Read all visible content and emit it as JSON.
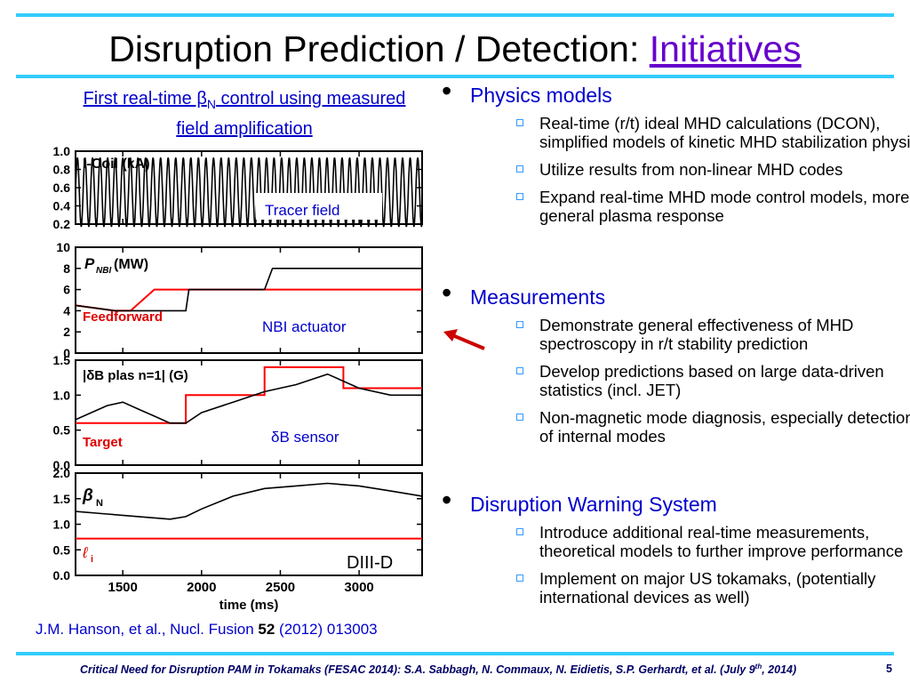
{
  "slide": {
    "title_main": "Disruption Prediction / Detection: ",
    "title_highlight": "Initiatives",
    "subtitle_a": "First real-time β",
    "subtitle_sub": "N",
    "subtitle_b": " control using measured field amplification",
    "reference_a": "J.M. Hanson, et al., Nucl. Fusion ",
    "reference_vol": "52",
    "reference_b": " (2012) 013003",
    "footer_a": "Critical Need for Disruption PAM in Tokamaks (FESAC 2014): S.A. Sabbagh, N. Commaux, N. Eidietis, S.P. Gerhardt, et al. (July 9",
    "footer_sup": "th",
    "footer_b": ", 2014)",
    "page_number": "5"
  },
  "bullets": [
    {
      "label": "Physics models",
      "items": [
        "Real-time (r/t) ideal MHD calculations (DCON), simplified models of kinetic MHD stabilization physics",
        "Utilize results from non-linear MHD codes",
        "Expand real-time MHD mode control models, more general plasma response"
      ]
    },
    {
      "label": "Measurements",
      "items": [
        "Demonstrate general effectiveness of MHD spectroscopy in r/t stability prediction",
        "Develop predictions based on large data-driven statistics (incl. JET)",
        "Non-magnetic mode diagnosis, especially detection of internal modes"
      ]
    },
    {
      "label": "Disruption Warning System",
      "items": [
        "Introduce additional real-time measurements, theoretical models to further improve performance",
        "Implement on major US tokamaks, (potentially international devices as well)"
      ]
    }
  ],
  "chart_data": {
    "type": "line",
    "x_range": [
      1200,
      3400
    ],
    "x_ticks": [
      "1500",
      "2000",
      "2500",
      "3000"
    ],
    "xlabel": "time (ms)",
    "annotation_machine": "DIII-D",
    "panels": [
      {
        "ylabel": "I-Coil (kA)",
        "annotation": "Tracer field",
        "y_ticks": [
          "1.0",
          "0.8",
          "0.6",
          "0.4",
          "0.2"
        ],
        "ylim": [
          0.2,
          1.0
        ],
        "series": [
          {
            "color": "#000000",
            "kind": "sine",
            "center": 0.55,
            "amplitude": 0.38,
            "period_ms": 48
          }
        ]
      },
      {
        "ylabel_a": "P",
        "ylabel_sub": "NBI",
        "ylabel_b": " (MW)",
        "label_red": "Feedforward",
        "annotation": "NBI actuator",
        "y_ticks": [
          "10",
          "8",
          "6",
          "4",
          "2",
          "0"
        ],
        "ylim": [
          0,
          10
        ],
        "series": [
          {
            "color": "#ff0000",
            "x": [
              1200,
              1450,
              1550,
              1700,
              3400
            ],
            "y": [
              4.5,
              4,
              4,
              6,
              6
            ]
          },
          {
            "color": "#000000",
            "x": [
              1200,
              1450,
              1900,
              1920,
              2100,
              2200,
              2400,
              2450,
              3400
            ],
            "y": [
              4.5,
              4,
              4,
              6,
              6,
              6,
              6,
              8,
              8
            ]
          }
        ]
      },
      {
        "ylabel": "|δB plas n=1| (G)",
        "label_red": "Target",
        "annotation": "δB sensor",
        "y_ticks": [
          "1.5",
          "1.0",
          "0.5",
          "0.0"
        ],
        "ylim": [
          0,
          1.5
        ],
        "series": [
          {
            "color": "#ff0000",
            "x": [
              1200,
              1900,
              1900,
              2400,
              2400,
              2900,
              2900,
              3400
            ],
            "y": [
              0.6,
              0.6,
              1.0,
              1.0,
              1.4,
              1.4,
              1.1,
              1.1
            ]
          },
          {
            "color": "#000000",
            "x": [
              1200,
              1300,
              1400,
              1500,
              1600,
              1700,
              1800,
              1900,
              2000,
              2200,
              2400,
              2600,
              2800,
              3000,
              3200,
              3400
            ],
            "y": [
              0.65,
              0.75,
              0.85,
              0.9,
              0.8,
              0.7,
              0.6,
              0.6,
              0.75,
              0.9,
              1.05,
              1.15,
              1.3,
              1.1,
              1.0,
              1.0
            ]
          }
        ]
      },
      {
        "ylabel_a": "β",
        "ylabel_sub": "N",
        "label_red_a": "ℓ",
        "label_red_sub": "i",
        "y_ticks": [
          "2.0",
          "1.5",
          "1.0",
          "0.5",
          "0.0"
        ],
        "ylim": [
          0,
          2.0
        ],
        "series": [
          {
            "color": "#ff0000",
            "x": [
              1200,
              3400
            ],
            "y": [
              0.72,
              0.72
            ]
          },
          {
            "color": "#000000",
            "x": [
              1200,
              1400,
              1600,
              1800,
              1900,
              2000,
              2200,
              2400,
              2600,
              2800,
              3000,
              3200,
              3400
            ],
            "y": [
              1.25,
              1.2,
              1.15,
              1.1,
              1.15,
              1.3,
              1.55,
              1.7,
              1.75,
              1.8,
              1.75,
              1.65,
              1.55
            ]
          }
        ]
      }
    ]
  },
  "colors": {
    "rule": "#33ccff",
    "accent": "#6600cc",
    "bullet_label": "#0000cc",
    "footer": "#000066",
    "arrow": "#cc0000"
  }
}
